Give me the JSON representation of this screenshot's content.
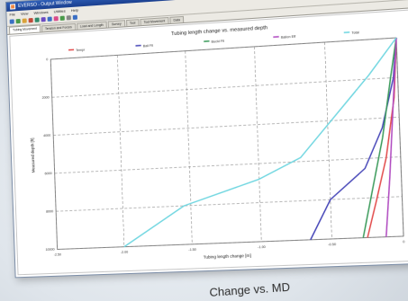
{
  "window": {
    "title": "EVERSO - Output Window",
    "menu": [
      "File",
      "View",
      "Windows",
      "Utilities",
      "Help"
    ],
    "tabs": [
      {
        "label": "Tubing Movement"
      },
      {
        "label": "Tension and Forces"
      },
      {
        "label": "Load and Length"
      },
      {
        "label": "Survey"
      },
      {
        "label": "Tool"
      },
      {
        "label": "Tool Movement"
      },
      {
        "label": "Data"
      }
    ],
    "controls": {
      "minimize": "_",
      "maximize": "□",
      "close": "x"
    }
  },
  "caption": "Change vs. MD",
  "chart_data": {
    "type": "line",
    "title": "Tubing length change vs. measured depth",
    "xlabel": "Tubing length change [m]",
    "ylabel": "Measured depth [ft]",
    "xlim": [
      -2.5,
      0
    ],
    "ylim": [
      10000,
      0
    ],
    "x_ticks": [
      -2.5,
      -2,
      -1.5,
      -1,
      -0.5,
      0
    ],
    "x_tick_labels": [
      "-2.50",
      "-2.00",
      "-1.50",
      "-1.00",
      "-0.50",
      "0"
    ],
    "y_ticks": [
      0,
      2000,
      4000,
      6000,
      8000,
      10000
    ],
    "y_tick_labels": [
      "0",
      "2000",
      "4000",
      "6000",
      "8000",
      "10000"
    ],
    "grid": true,
    "legend_position": "top",
    "series": [
      {
        "name": "Tempr",
        "color": "#e24a4a",
        "points": [
          [
            -0.25,
            10000
          ],
          [
            -0.18,
            8200
          ],
          [
            -0.1,
            6000
          ],
          [
            -0.03,
            3000
          ],
          [
            0,
            0
          ]
        ]
      },
      {
        "name": "Ball Flt",
        "color": "#4747b8",
        "points": [
          [
            -0.65,
            10000
          ],
          [
            -0.5,
            8000
          ],
          [
            -0.25,
            6500
          ],
          [
            -0.12,
            4500
          ],
          [
            -0.03,
            2000
          ],
          [
            0,
            0
          ]
        ]
      },
      {
        "name": "Buckl Flt",
        "color": "#3a9a5a",
        "points": [
          [
            -0.28,
            10000
          ],
          [
            -0.2,
            7500
          ],
          [
            -0.12,
            5000
          ],
          [
            -0.05,
            2000
          ],
          [
            0,
            0
          ]
        ]
      },
      {
        "name": "Ballon Eff",
        "color": "#b04ac0",
        "points": [
          [
            -0.12,
            10000
          ],
          [
            -0.08,
            7000
          ],
          [
            -0.04,
            3500
          ],
          [
            0,
            0
          ]
        ]
      },
      {
        "name": "Total",
        "color": "#6fd6e0",
        "points": [
          [
            -2.0,
            10000
          ],
          [
            -1.55,
            8000
          ],
          [
            -1.0,
            6800
          ],
          [
            -0.7,
            5800
          ],
          [
            -0.45,
            3800
          ],
          [
            -0.2,
            1800
          ],
          [
            0,
            0
          ]
        ]
      }
    ]
  },
  "colors": {
    "titlebar": "#2459b0",
    "chrome": "#eceae4"
  }
}
